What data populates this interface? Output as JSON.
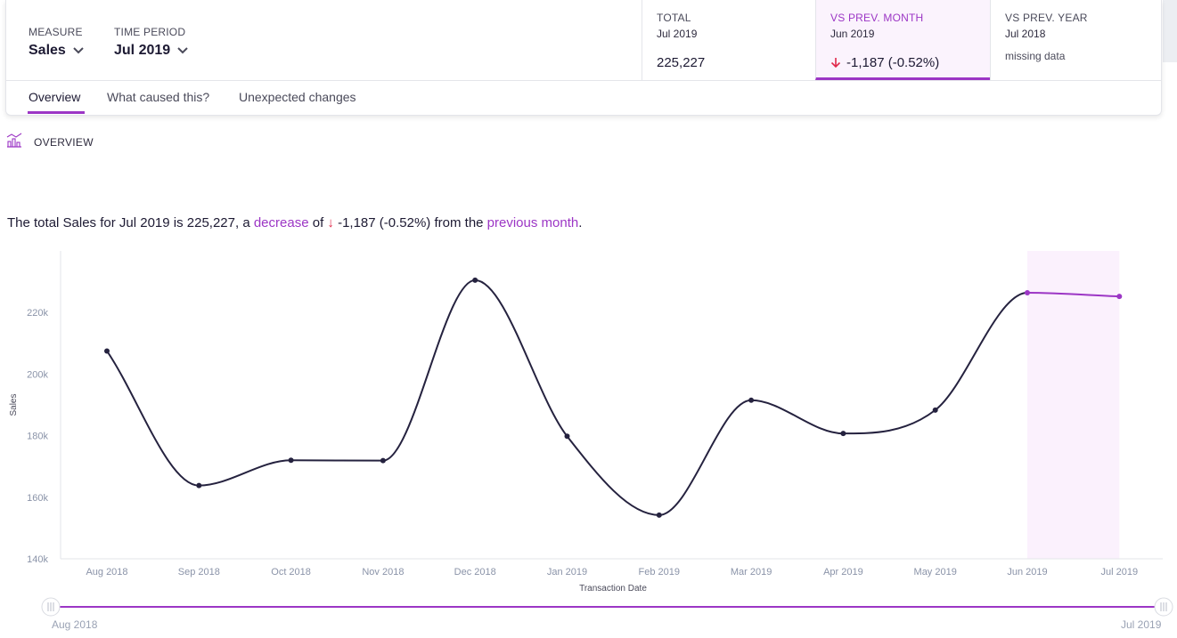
{
  "header": {
    "measure": {
      "label": "MEASURE",
      "value": "Sales"
    },
    "time_period": {
      "label": "TIME PERIOD",
      "value": "Jul 2019"
    },
    "kpis": [
      {
        "title": "TOTAL",
        "subtitle": "Jul 2019",
        "value": "225,227",
        "note": ""
      },
      {
        "title": "VS PREV. MONTH",
        "subtitle": "Jun 2019",
        "value": "-1,187 (-0.52%)",
        "note": ""
      },
      {
        "title": "VS PREV. YEAR",
        "subtitle": "Jul 2018",
        "value": "",
        "note": "missing data"
      }
    ]
  },
  "tabs": [
    "Overview",
    "What caused this?",
    "Unexpected changes"
  ],
  "overview": {
    "section_title": "OVERVIEW",
    "summary": {
      "prefix": "The total Sales for Jul 2019 is 225,227, a ",
      "direction": "decrease",
      "of": " of ",
      "arrow": "↓",
      "change": " -1,187 (-0.52%)",
      "from": " from the ",
      "comparison": "previous month",
      "suffix": "."
    }
  },
  "chart_data": {
    "type": "line",
    "x": [
      "Aug 2018",
      "Sep 2018",
      "Oct 2018",
      "Nov 2018",
      "Dec 2018",
      "Jan 2019",
      "Feb 2019",
      "Mar 2019",
      "Apr 2019",
      "May 2019",
      "Jun 2019",
      "Jul 2019"
    ],
    "series": [
      {
        "values": [
          207500,
          163800,
          172000,
          171900,
          230500,
          179800,
          154200,
          191500,
          180700,
          188300,
          226400,
          225227
        ]
      }
    ],
    "xlabel": "Transaction Date",
    "ylabel": "Sales",
    "ylim": [
      140000,
      240000
    ],
    "yticks": [
      "140k",
      "160k",
      "180k",
      "200k",
      "220k"
    ],
    "highlight_range": [
      "Jun 2019",
      "Jul 2019"
    ],
    "line_color": "#25223f",
    "highlight_color": "#9c36c5",
    "highlight_fill": "#fbf1fd",
    "grid": false
  },
  "range_slider": {
    "start": "Aug 2018",
    "end": "Jul 2019"
  }
}
